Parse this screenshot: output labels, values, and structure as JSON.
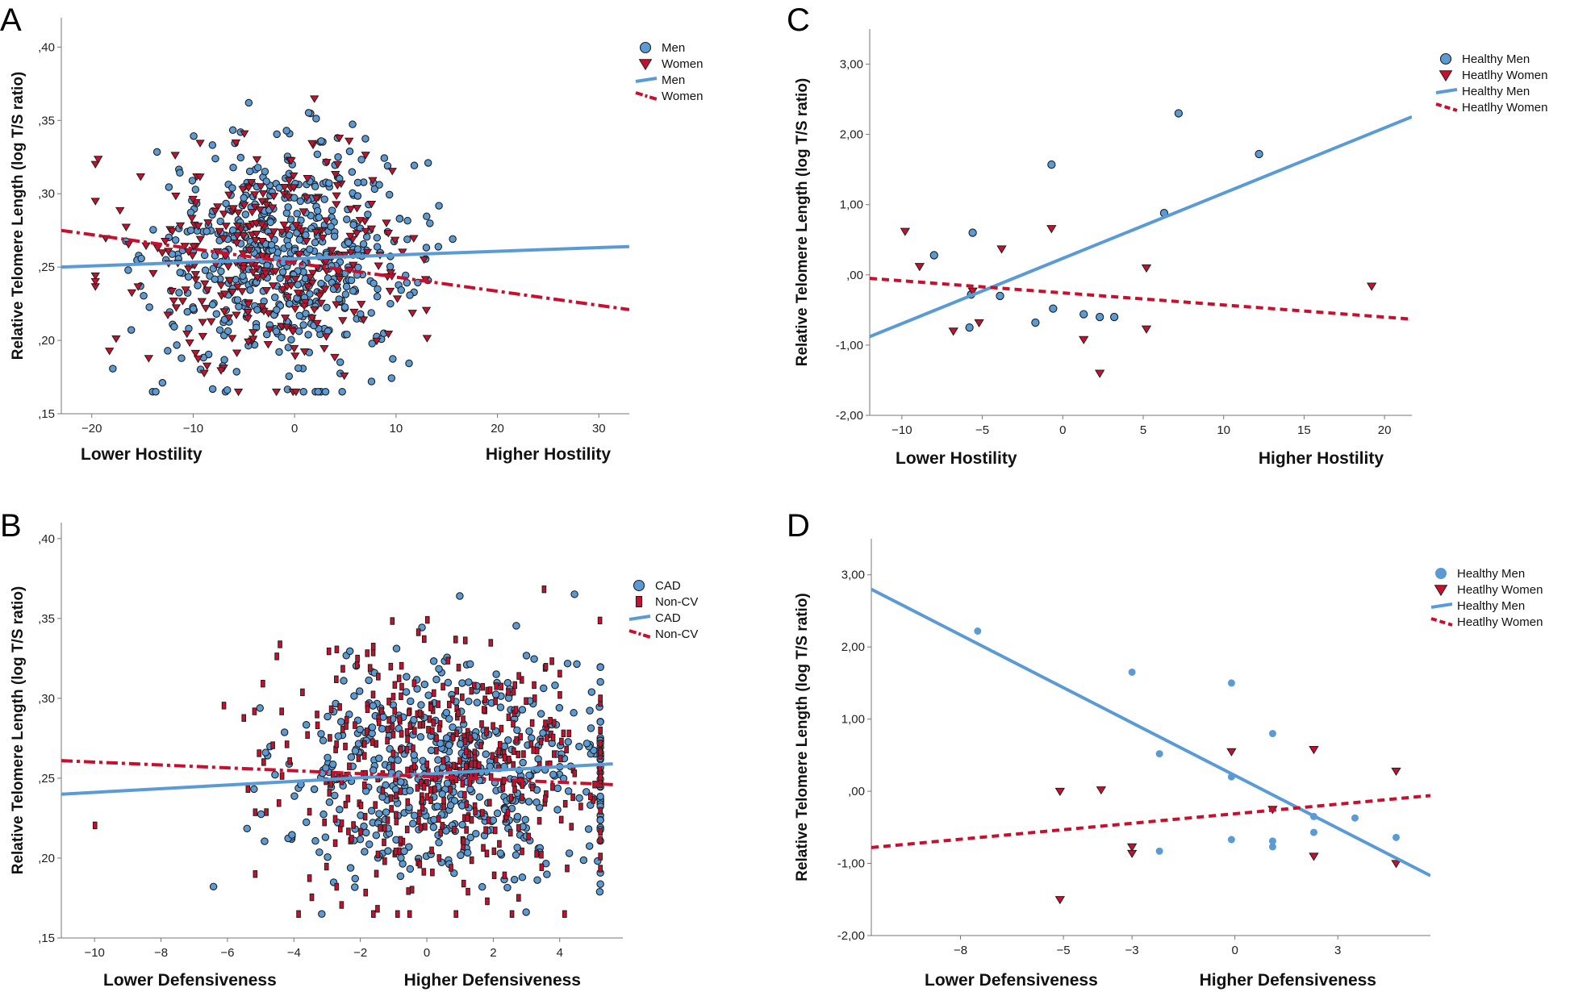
{
  "figure": {
    "colors": {
      "blue": "#5b9bd5",
      "red": "#c8102e",
      "darkred": "#7a0f1a",
      "marker_stroke": "#1f1f1f"
    }
  },
  "chart_data": [
    {
      "panel": "A",
      "type": "scatter",
      "xlabel_left": "Lower Hostility",
      "xlabel_right": "Higher Hostility",
      "ylabel": "Relative Telomere Length (log T/S ratio)",
      "xlim": [
        -23,
        33
      ],
      "ylim": [
        0.15,
        0.42
      ],
      "xticks": [
        -20,
        -10,
        0,
        10,
        20,
        30
      ],
      "xtick_labels": [
        "−20",
        "−10",
        "0",
        "10",
        "20",
        "30"
      ],
      "yticks": [
        0.15,
        0.2,
        0.25,
        0.3,
        0.35,
        0.4
      ],
      "ytick_labels": [
        ",15",
        ",20",
        ",25",
        ",30",
        ",35",
        ",40"
      ],
      "legend": [
        {
          "label": "Men",
          "kind": "circle",
          "color": "blue"
        },
        {
          "label": "Women",
          "kind": "triangle",
          "color": "red"
        },
        {
          "label": "Men",
          "kind": "solid",
          "color": "blue"
        },
        {
          "label": "Women",
          "kind": "dashdot",
          "color": "red"
        }
      ],
      "series": [
        {
          "name": "Men",
          "marker": "circle",
          "color": "blue",
          "points_approx": 560,
          "x_center": -1,
          "x_sd": 6.5,
          "y_center": 0.258,
          "y_sd": 0.038
        },
        {
          "name": "Women",
          "marker": "triangle",
          "color": "red",
          "points_approx": 300,
          "x_center": -2,
          "x_sd": 7,
          "y_center": 0.258,
          "y_sd": 0.04
        }
      ],
      "fit_lines": [
        {
          "name": "Men",
          "style": "solid",
          "color": "blue",
          "x": [
            -23,
            33
          ],
          "y": [
            0.25,
            0.264
          ]
        },
        {
          "name": "Women",
          "style": "dashdot",
          "color": "red",
          "x": [
            -23,
            33
          ],
          "y": [
            0.275,
            0.221
          ]
        }
      ]
    },
    {
      "panel": "B",
      "type": "scatter",
      "xlabel_left": "Lower Defensiveness",
      "xlabel_right": "Higher Defensiveness",
      "ylabel": "Relative Telomere Length (log T/S ratio)",
      "xlim": [
        -11,
        5.9
      ],
      "ylim": [
        0.15,
        0.41
      ],
      "xticks": [
        -10,
        -8,
        -6,
        -4,
        -2,
        0,
        2,
        4
      ],
      "xtick_labels": [
        "−10",
        "−8",
        "−6",
        "−4",
        "−2",
        "0",
        "2",
        "4"
      ],
      "yticks": [
        0.15,
        0.2,
        0.25,
        0.3,
        0.35,
        0.4
      ],
      "ytick_labels": [
        ",15",
        ",20",
        ",25",
        ",30",
        ",35",
        ",40"
      ],
      "legend": [
        {
          "label": "CAD",
          "kind": "circle",
          "color": "blue"
        },
        {
          "label": "Non-CV",
          "kind": "rect",
          "color": "red"
        },
        {
          "label": "CAD",
          "kind": "solid",
          "color": "blue"
        },
        {
          "label": "Non-CV",
          "kind": "dashdot",
          "color": "red"
        }
      ],
      "series": [
        {
          "name": "CAD",
          "marker": "circle",
          "color": "blue",
          "points_approx": 560,
          "x_center": 1,
          "x_sd": 2.6,
          "y_center": 0.252,
          "y_sd": 0.035
        },
        {
          "name": "Non-CV",
          "marker": "rect",
          "color": "red",
          "points_approx": 420,
          "x_center": 0.4,
          "x_sd": 2.6,
          "y_center": 0.255,
          "y_sd": 0.038
        }
      ],
      "fit_lines": [
        {
          "name": "CAD",
          "style": "solid",
          "color": "blue",
          "x": [
            -11,
            5.6
          ],
          "y": [
            0.24,
            0.259
          ]
        },
        {
          "name": "Non-CV",
          "style": "dashdot",
          "color": "red",
          "x": [
            -11,
            5.6
          ],
          "y": [
            0.261,
            0.246
          ]
        }
      ]
    },
    {
      "panel": "C",
      "type": "scatter",
      "xlabel_left": "Lower Hostility",
      "xlabel_right": "Higher Hostility",
      "ylabel": "Relative Telomere Length (log T/S ratio)",
      "xlim": [
        -12,
        21.7
      ],
      "ylim": [
        -2.0,
        3.5
      ],
      "xticks": [
        -10,
        -5,
        0,
        5,
        10,
        15,
        20
      ],
      "xtick_labels": [
        "−10",
        "−5",
        "0",
        "5",
        "10",
        "15",
        "20"
      ],
      "yticks": [
        -2,
        -1,
        0,
        1,
        2,
        3
      ],
      "ytick_labels": [
        "-2,00",
        "-1,00",
        ",00",
        "1,00",
        "2,00",
        "3,00"
      ],
      "legend": [
        {
          "label": "Healthy Men",
          "kind": "circle",
          "color": "blue"
        },
        {
          "label": "Heatlhy Women",
          "kind": "triangle",
          "color": "red"
        },
        {
          "label": "Healthy Men",
          "kind": "solid",
          "color": "blue"
        },
        {
          "label": "Heatlhy Women",
          "kind": "dashed",
          "color": "red"
        }
      ],
      "series": [
        {
          "name": "Healthy Men",
          "marker": "circle",
          "color": "blue",
          "x": [
            -8,
            -5.6,
            -5.7,
            -5.8,
            -3.9,
            -1.7,
            -0.6,
            -0.7,
            1.3,
            2.3,
            3.2,
            6.3,
            7.2,
            12.2
          ],
          "y": [
            0.28,
            0.6,
            -0.28,
            -0.75,
            -0.3,
            -0.68,
            -0.48,
            1.57,
            -0.56,
            -0.6,
            -0.6,
            0.88,
            2.3,
            1.72
          ]
        },
        {
          "name": "Heatlhy Women",
          "marker": "triangle",
          "color": "red",
          "x": [
            -9.8,
            -8.9,
            -6.8,
            -5.6,
            -5.2,
            -3.8,
            -0.7,
            1.3,
            2.3,
            5.2,
            5.2,
            19.2
          ],
          "y": [
            0.62,
            0.12,
            -0.8,
            -0.23,
            -0.68,
            0.37,
            0.66,
            -0.92,
            -1.4,
            0.1,
            -0.77,
            -0.16
          ]
        }
      ],
      "fit_lines": [
        {
          "name": "Healthy Men",
          "style": "solid",
          "color": "blue",
          "x": [
            -12,
            21.7
          ],
          "y": [
            -0.88,
            2.25
          ]
        },
        {
          "name": "Heatlhy Women",
          "style": "dashed",
          "color": "red",
          "x": [
            -12,
            21.7
          ],
          "y": [
            -0.05,
            -0.63
          ]
        }
      ]
    },
    {
      "panel": "D",
      "type": "scatter",
      "xlabel_left": "Lower Defensiveness",
      "xlabel_right": "Higher Defensiveness",
      "ylabel": "Relative Telomere Length (log T/S ratio)",
      "xlim": [
        -10.6,
        5.7
      ],
      "ylim": [
        -2.0,
        3.5
      ],
      "xticks": [
        -8,
        -5,
        -3,
        0,
        3
      ],
      "xtick_labels": [
        "−8",
        "−5",
        "−3",
        "0",
        "3"
      ],
      "yticks": [
        -2,
        -1,
        0,
        1,
        2,
        3
      ],
      "ytick_labels": [
        "-2,00",
        "-1,00",
        ",00",
        "1,00",
        "2,00",
        "3,00"
      ],
      "legend": [
        {
          "label": "Healthy Men",
          "kind": "dot",
          "color": "blue"
        },
        {
          "label": "Heatlhy Women",
          "kind": "triangle",
          "color": "red"
        },
        {
          "label": "Healthy Men",
          "kind": "solid",
          "color": "blue"
        },
        {
          "label": "Heatlhy Women",
          "kind": "dashed",
          "color": "red"
        }
      ],
      "series": [
        {
          "name": "Healthy Men",
          "marker": "dot",
          "color": "blue",
          "x": [
            -7.5,
            -3,
            -2.2,
            -2.2,
            -0.1,
            -0.1,
            -0.1,
            1.1,
            1.1,
            1.1,
            2.3,
            2.3,
            3.5,
            4.7
          ],
          "y": [
            2.22,
            1.65,
            0.52,
            -0.83,
            1.5,
            0.2,
            -0.67,
            0.8,
            -0.69,
            -0.77,
            -0.35,
            -0.57,
            -0.37,
            -0.64
          ]
        },
        {
          "name": "Heatlhy Women",
          "marker": "triangle",
          "color": "red",
          "x": [
            -5.1,
            -5.1,
            -3.9,
            -3,
            -3,
            -0.1,
            1.1,
            2.3,
            2.3,
            4.7,
            4.7
          ],
          "y": [
            0.0,
            -1.5,
            0.02,
            -0.77,
            -0.86,
            0.55,
            -0.25,
            0.58,
            -0.9,
            0.28,
            -1.0
          ]
        }
      ],
      "fit_lines": [
        {
          "name": "Healthy Men",
          "style": "solid",
          "color": "blue",
          "x": [
            -10.6,
            5.7
          ],
          "y": [
            2.8,
            -1.17
          ]
        },
        {
          "name": "Heatlhy Women",
          "style": "dashed",
          "color": "red",
          "x": [
            -10.6,
            5.7
          ],
          "y": [
            -0.78,
            -0.06
          ]
        }
      ]
    }
  ]
}
